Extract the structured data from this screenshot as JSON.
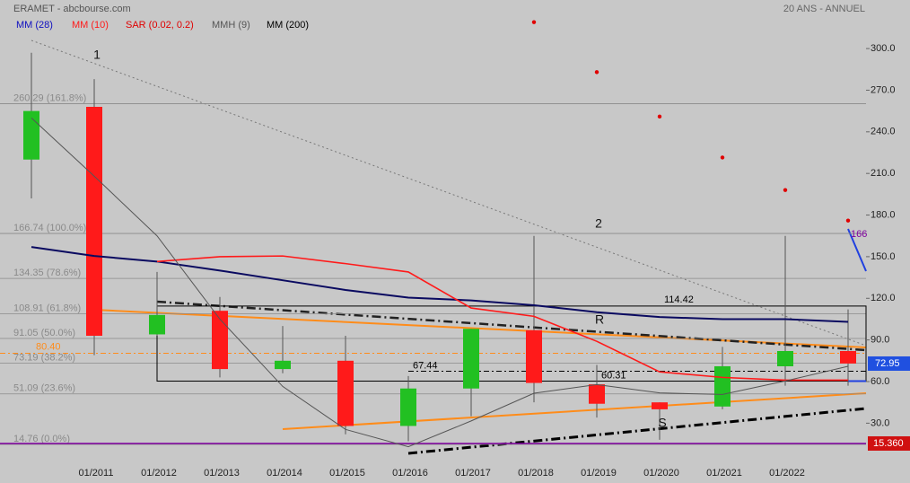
{
  "chart_data": {
    "type": "candlestick",
    "title": "ERAMET - abcbourse.com",
    "subtitle": "20 ANS - ANNUEL",
    "categories": [
      null,
      "01/2011",
      "01/2012",
      "01/2013",
      "01/2014",
      "01/2015",
      "01/2016",
      "01/2017",
      "01/2018",
      "01/2019",
      "01/2020",
      "01/2021",
      "01/2022",
      null
    ],
    "open": [
      220,
      258,
      94,
      111,
      69,
      75,
      28,
      55,
      97,
      58,
      45,
      42,
      71,
      82
    ],
    "high": [
      297,
      278,
      139,
      121,
      100,
      93,
      64,
      98,
      165,
      72,
      45,
      85,
      165,
      112
    ],
    "low": [
      192,
      79,
      93,
      63,
      66,
      22,
      17,
      35,
      45,
      34,
      18,
      40,
      57,
      57
    ],
    "close": [
      255,
      93,
      108,
      69,
      75,
      28,
      55,
      98,
      59,
      44,
      40,
      71,
      82,
      73
    ],
    "color_up": "#22c022",
    "color_down": "#ff1a1a",
    "ylim": [
      5,
      335
    ],
    "yticks": [
      {
        "value": 30,
        "label": "30.0"
      },
      {
        "value": 60,
        "label": "60.0"
      },
      {
        "value": 90,
        "label": "90.0"
      },
      {
        "value": 120,
        "label": "120.0"
      },
      {
        "value": 150,
        "label": "150.0"
      },
      {
        "value": 180,
        "label": "180.0"
      },
      {
        "value": 210,
        "label": "210.0"
      },
      {
        "value": 240,
        "label": "240.0"
      },
      {
        "value": 270,
        "label": "270.0"
      },
      {
        "value": 300,
        "label": "300.0"
      }
    ],
    "series": [
      {
        "name": "MM (28)",
        "color": "#0a0a60",
        "style": "line",
        "values": [
          157,
          150.5,
          146.5,
          140,
          133,
          126,
          120.5,
          118.5,
          115,
          110,
          106.5,
          105,
          105,
          103
        ]
      },
      {
        "name": "MM (10)",
        "color": "#ff1a1a",
        "style": "line",
        "values": [
          null,
          null,
          146.5,
          150,
          150.5,
          145,
          139,
          113,
          107,
          89,
          67,
          63,
          61,
          61
        ]
      },
      {
        "name": "SAR (0.02, 0.2)",
        "color": "#e00000",
        "style": "dots",
        "values": [
          null,
          null,
          null,
          null,
          null,
          null,
          null,
          null,
          319,
          283,
          251,
          221.5,
          198,
          176
        ]
      },
      {
        "name": "MMH (9)",
        "color": "#555555",
        "style": "line",
        "values": [
          250,
          208,
          165,
          105,
          56.5,
          25.5,
          13,
          31.6,
          51.6,
          57.8,
          51.8,
          50.7,
          60.4,
          71
        ]
      },
      {
        "name": "MM (200)",
        "color": "#000000",
        "style": "line",
        "values": [
          null,
          null,
          null,
          null,
          null,
          null,
          null,
          null,
          null,
          null,
          null,
          null,
          null,
          null
        ]
      }
    ],
    "levels": [
      {
        "value": 260.29,
        "label": "260.29 (161.8%)"
      },
      {
        "value": 166.74,
        "label": "166.74 (100.0%)"
      },
      {
        "value": 134.35,
        "label": "134.35 (78.6%)"
      },
      {
        "value": 108.91,
        "label": "108.91 (61.8%)"
      },
      {
        "value": 91.05,
        "label": "91.05 (50.0%)"
      },
      {
        "value": 73.19,
        "label": "73.19 (38.2%)"
      },
      {
        "value": 51.09,
        "label": "51.09 (23.6%)"
      },
      {
        "value": 14.76,
        "label": "14.76 (0.0%)"
      }
    ],
    "price_labels": [
      {
        "value": 114.42,
        "label": "114.42"
      },
      {
        "value": 67.44,
        "label": "67.44"
      },
      {
        "value": 60.31,
        "label": "60.31"
      }
    ],
    "support_line": {
      "value": 80.4,
      "label": "80.40",
      "color": "#ff8c1a"
    },
    "last_price": {
      "value": 72.95,
      "label": "72.95",
      "color": "#2050e0"
    },
    "low_price": {
      "value": 15.36,
      "label": "15.360",
      "color": "#d01010"
    },
    "target_label": {
      "value": 166,
      "label": "166",
      "color": "#8000a0"
    },
    "annotations": [
      "1",
      "2",
      "R",
      "S"
    ]
  }
}
